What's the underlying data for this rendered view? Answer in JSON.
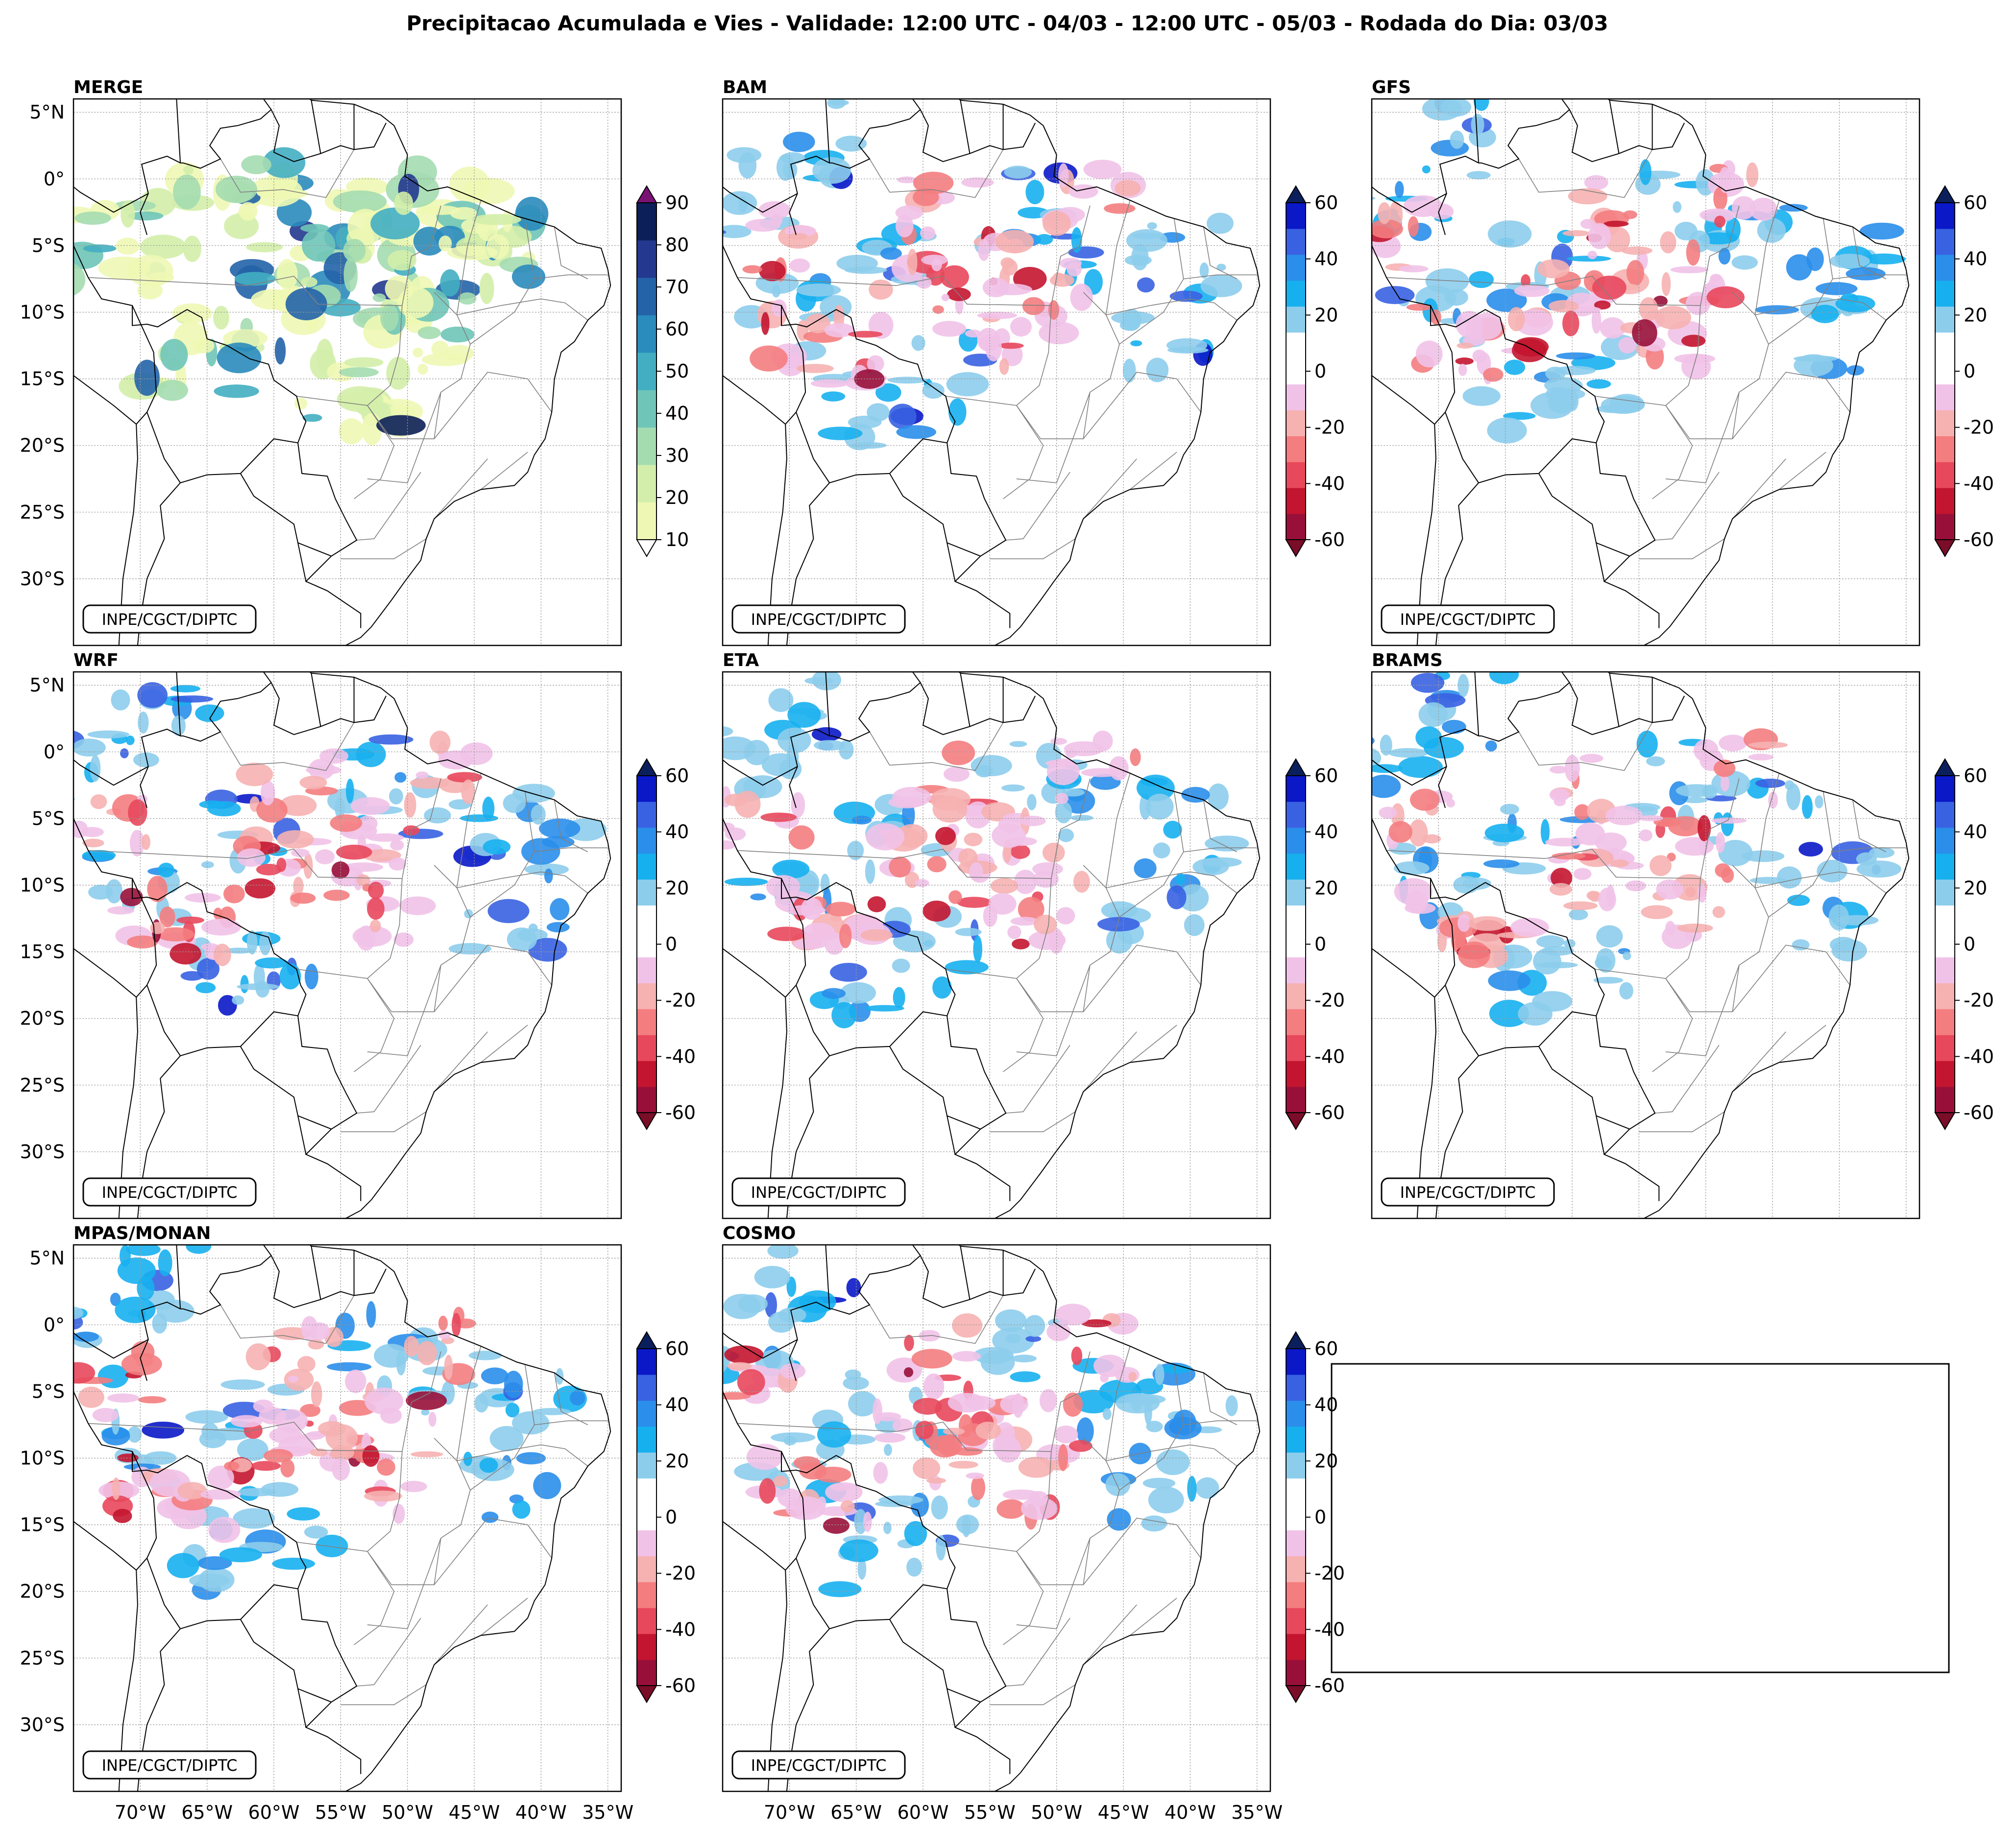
{
  "figure": {
    "title": "Precipitacao Acumulada e Vies - Validade: 12:00 UTC - 04/03 - 12:00 UTC - 05/03 - Rodada do Dia: 03/03",
    "credit": "INPE/CGCT/DIPTC"
  },
  "axes": {
    "lat_labels": [
      "5°N",
      "0°",
      "5°S",
      "10°S",
      "15°S",
      "20°S",
      "25°S",
      "30°S"
    ],
    "lon_labels": [
      "70°W",
      "65°W",
      "60°W",
      "55°W",
      "50°W",
      "45°W",
      "40°W",
      "35°W"
    ]
  },
  "panels": [
    {
      "name": "MERGE",
      "type": "precip"
    },
    {
      "name": "BAM",
      "type": "bias"
    },
    {
      "name": "GFS",
      "type": "bias"
    },
    {
      "name": "WRF",
      "type": "bias"
    },
    {
      "name": "ETA",
      "type": "bias"
    },
    {
      "name": "BRAMS",
      "type": "bias"
    },
    {
      "name": "MPAS/MONAN",
      "type": "bias"
    },
    {
      "name": "COSMO",
      "type": "bias"
    }
  ],
  "colorbars": {
    "precip": {
      "ticks": [
        "90",
        "80",
        "70",
        "60",
        "50",
        "40",
        "30",
        "20",
        "10"
      ],
      "colors": [
        "#eef8b4",
        "#d3eeaa",
        "#a4dcb0",
        "#6fc5b8",
        "#43aec2",
        "#2a8bbd",
        "#2463a8",
        "#24388f",
        "#0c1f58"
      ],
      "extend_max_color": "#7a1273"
    },
    "bias": {
      "ticks": [
        "60",
        "40",
        "20",
        "0",
        "-20",
        "-40",
        "-60"
      ],
      "colors": [
        "#98103a",
        "#c3152f",
        "#e8485c",
        "#f47d7f",
        "#f6b1b1",
        "#f1c2e8",
        "#ffffff",
        "#ffffff",
        "#8dcdec",
        "#17b0ef",
        "#2a8eea",
        "#3962e2",
        "#0a18c8"
      ],
      "extend_max_color": "#0b1f5c",
      "extend_min_color": "#7a0d28"
    }
  }
}
